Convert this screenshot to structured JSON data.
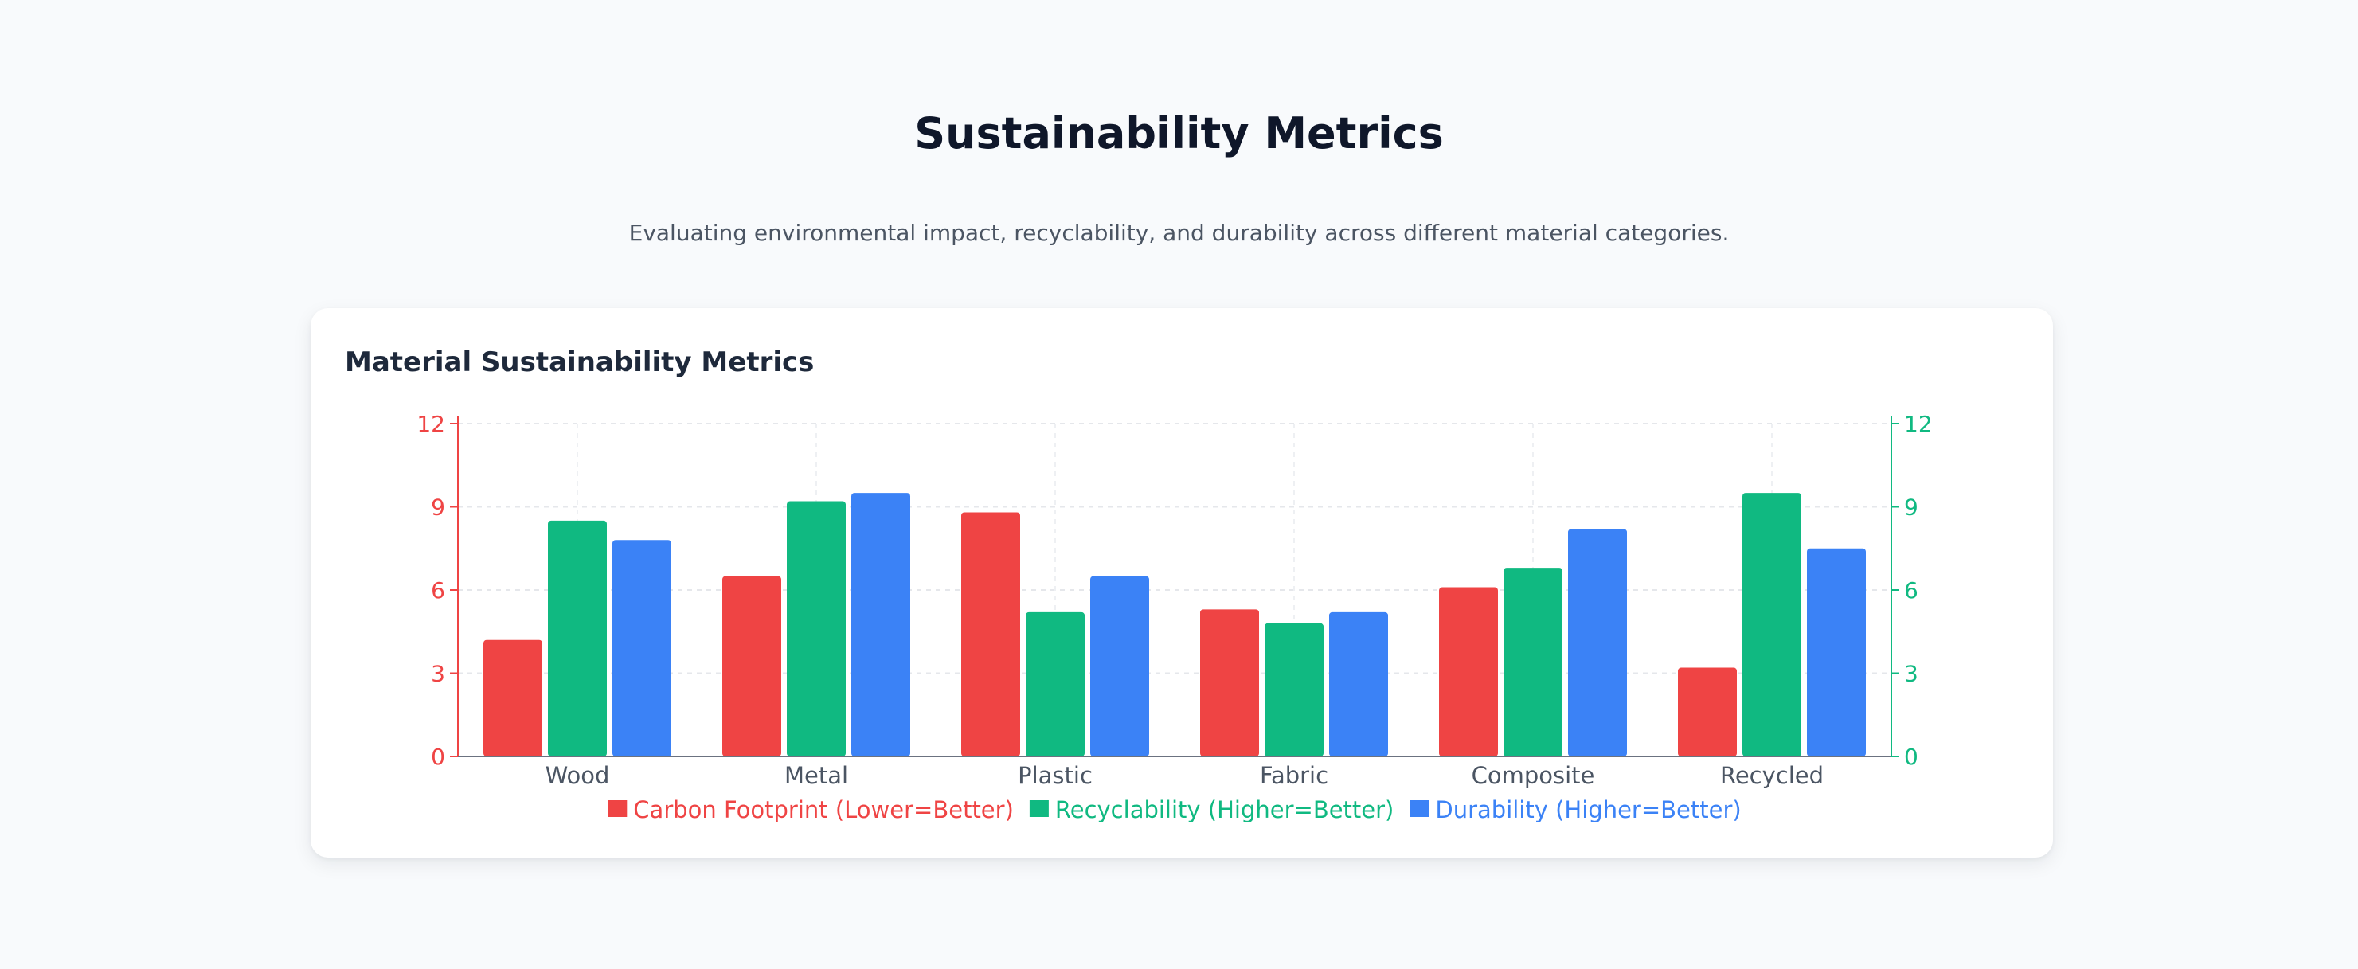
{
  "header": {
    "title": "Sustainability Metrics",
    "subtitle": "Evaluating environmental impact, recyclability, and durability across different material categories."
  },
  "card": {
    "title": "Material Sustainability Metrics"
  },
  "chart_data": {
    "type": "bar",
    "title": "Material Sustainability Metrics",
    "categories": [
      "Wood",
      "Metal",
      "Plastic",
      "Fabric",
      "Composite",
      "Recycled"
    ],
    "series": [
      {
        "name": "Carbon Footprint (Lower=Better)",
        "color": "#ef4444",
        "axis": "left",
        "values": [
          4.2,
          6.5,
          8.8,
          5.3,
          6.1,
          3.2
        ]
      },
      {
        "name": "Recyclability (Higher=Better)",
        "color": "#10b981",
        "axis": "right",
        "values": [
          8.5,
          9.2,
          5.2,
          4.8,
          6.8,
          9.5
        ]
      },
      {
        "name": "Durability (Higher=Better)",
        "color": "#3b82f6",
        "axis": "right",
        "values": [
          7.8,
          9.5,
          6.5,
          5.2,
          8.2,
          7.5
        ]
      }
    ],
    "y_left": {
      "ticks": [
        "0",
        "3",
        "6",
        "9",
        "12"
      ],
      "range": [
        0,
        12
      ],
      "color": "#ef4444"
    },
    "y_right": {
      "ticks": [
        "0",
        "3",
        "6",
        "9",
        "12"
      ],
      "range": [
        0,
        12
      ],
      "color": "#10b981"
    },
    "grid": true,
    "legend": "bottom-center"
  }
}
